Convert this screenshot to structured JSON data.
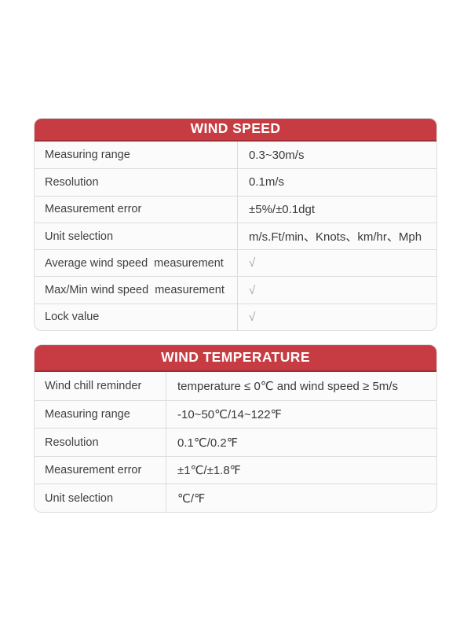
{
  "colors": {
    "header_red": "#c63c42",
    "header_red_dark": "#9f2e33",
    "border_color": "#dcdcdc",
    "row_bg": "#fbfbfb",
    "label_text": "#3f3f3f",
    "value_text": "#3a3a3a",
    "check_text": "#a3a3a3",
    "page_bg": "#ffffff"
  },
  "tables": [
    {
      "title": "WIND SPEED",
      "rows": [
        {
          "label": "Measuring range",
          "value": "0.3~30m/s"
        },
        {
          "label": "Resolution",
          "value": "0.1m/s"
        },
        {
          "label": "Measurement error",
          "value": "±5%/±0.1dgt"
        },
        {
          "label": "Unit selection",
          "value": "m/s.Ft/min、Knots、km/hr、Mph"
        },
        {
          "label": "Average wind speed  measurement",
          "value": "√",
          "muted": true
        },
        {
          "label": "Max/Min wind speed  measurement",
          "value": "√",
          "muted": true
        },
        {
          "label": "Lock value",
          "value": "√",
          "muted": true
        }
      ]
    },
    {
      "title": "WIND TEMPERATURE",
      "rows": [
        {
          "label": "Wind chill reminder",
          "value": "temperature ≤ 0℃ and wind speed ≥ 5m/s"
        },
        {
          "label": "Measuring range",
          "value": "-10~50℃/14~122℉"
        },
        {
          "label": "Resolution",
          "value": "0.1℃/0.2℉"
        },
        {
          "label": "Measurement error",
          "value": "±1℃/±1.8℉"
        },
        {
          "label": "Unit selection",
          "value": "℃/℉"
        }
      ]
    }
  ]
}
